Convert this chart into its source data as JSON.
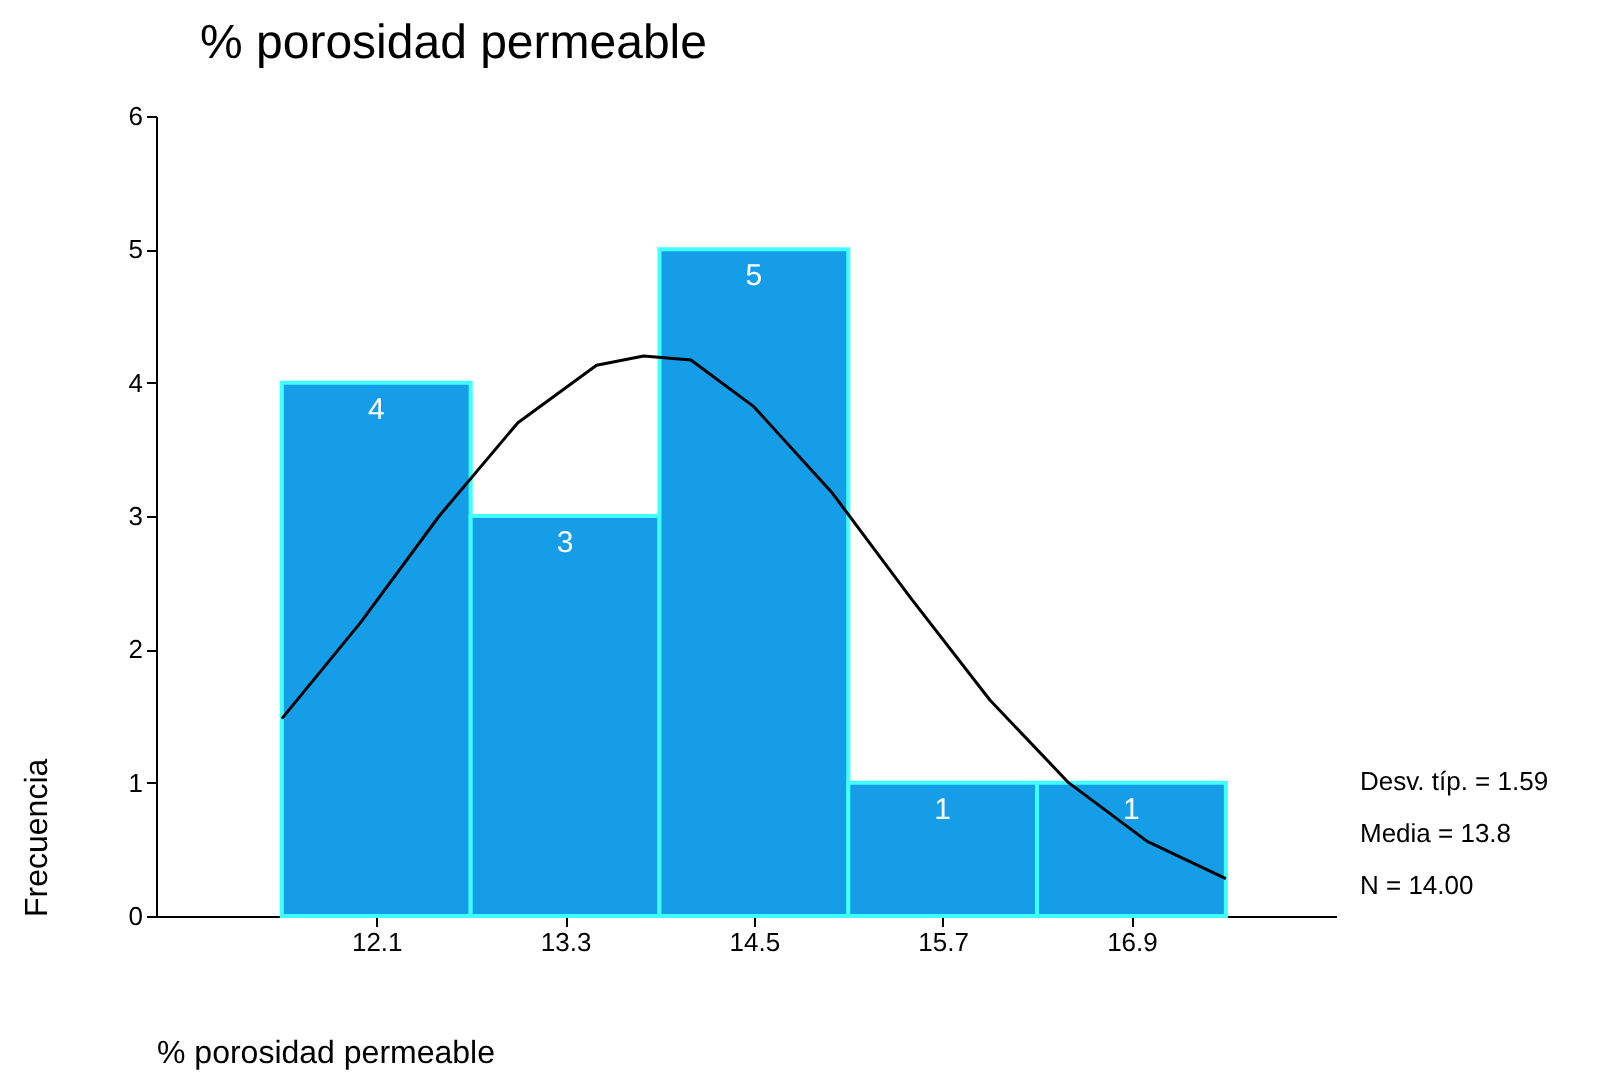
{
  "chart_data": {
    "type": "histogram",
    "title": "% porosidad permeable",
    "xlabel": "% porosidad permeable",
    "ylabel": "Frecuencia",
    "bins": [
      11.5,
      12.7,
      13.9,
      15.1,
      16.3,
      17.5
    ],
    "values": [
      4,
      3,
      5,
      1,
      1
    ],
    "color": "#169de8",
    "value_labels": [
      "4",
      "3",
      "5",
      "1",
      "1"
    ],
    "series": [
      {
        "type": "line",
        "color": "#000000",
        "x": [
          11.5,
          12.0,
          12.5,
          13.0,
          13.5,
          13.8,
          14.1,
          14.5,
          15.0,
          15.5,
          16.0,
          16.5,
          17.0,
          17.5
        ],
        "values": [
          1.48,
          2.2,
          3.0,
          3.7,
          4.13,
          4.2,
          4.17,
          3.82,
          3.17,
          2.38,
          1.62,
          1.0,
          0.56,
          0.28
        ]
      }
    ],
    "xlim": [
      10.7,
      18.2
    ],
    "xticks": [
      12.1,
      13.3,
      14.5,
      15.7,
      16.9
    ],
    "ylim": [
      0,
      6
    ],
    "yticks": [
      0,
      1,
      2,
      3,
      4,
      5,
      6
    ],
    "grid": false,
    "annotations": [
      "Desv. típ. = 1.59",
      "Media = 13.8",
      "N = 14.00"
    ]
  }
}
